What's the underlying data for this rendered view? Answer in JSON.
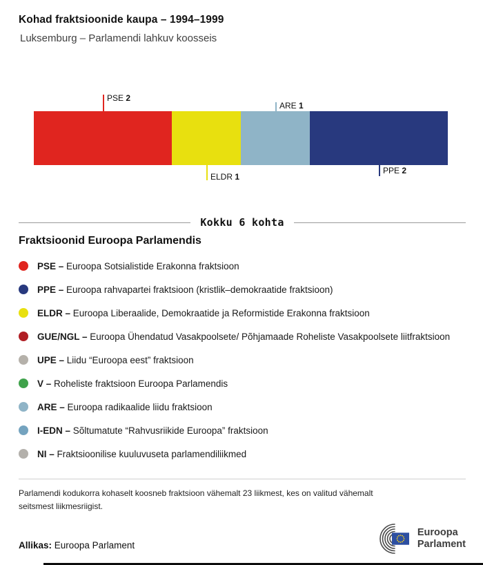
{
  "header": {
    "title": "Kohad fraktsioonide kaupa – 1994–1999",
    "subtitle": "Luksemburg – Parlamendi lahkuv koosseis"
  },
  "chart_data": {
    "type": "bar",
    "orientation": "horizontal-stacked",
    "title": "Kohad fraktsioonide kaupa – 1994–1999",
    "total_label": "Kokku 6 kohta",
    "total_seats": 6,
    "segments": [
      {
        "label": "PSE",
        "value": 2,
        "color": "#e0251f",
        "callout": "top"
      },
      {
        "label": "ELDR",
        "value": 1,
        "color": "#e8e00f",
        "callout": "bottom"
      },
      {
        "label": "ARE",
        "value": 1,
        "color": "#8fb4c7",
        "callout": "top"
      },
      {
        "label": "PPE",
        "value": 2,
        "color": "#28397e",
        "callout": "bottom"
      }
    ]
  },
  "legend": {
    "heading": "Fraktsioonid Euroopa Parlamendis",
    "items": [
      {
        "abbr": "PSE –",
        "desc": "Euroopa Sotsialistide Erakonna fraktsioon",
        "color": "#e0251f"
      },
      {
        "abbr": "PPE –",
        "desc": "Euroopa rahvapartei fraktsioon (kristlik–demokraatide fraktsioon)",
        "color": "#28397e"
      },
      {
        "abbr": "ELDR –",
        "desc": "Euroopa Liberaalide, Demokraatide ja Reformistide Erakonna fraktsioon",
        "color": "#e8e00f"
      },
      {
        "abbr": "GUE/NGL –",
        "desc": "Euroopa Ühendatud Vasakpoolsete/ Põhjamaade Roheliste Vasakpoolsete liitfraktsioon",
        "color": "#b01e24"
      },
      {
        "abbr": "UPE –",
        "desc": "Liidu “Euroopa eest” fraktsioon",
        "color": "#b5b1aa"
      },
      {
        "abbr": "V –",
        "desc": "Roheliste fraktsioon Euroopa Parlamendis",
        "color": "#3fa24b"
      },
      {
        "abbr": "ARE –",
        "desc": "Euroopa radikaalide liidu fraktsioon",
        "color": "#8fb4c7"
      },
      {
        "abbr": "I-EDN –",
        "desc": "Sõltumatute “Rahvusriikide Euroopa” fraktsioon",
        "color": "#74a3bf"
      },
      {
        "abbr": "NI –",
        "desc": "Fraktsioonilise kuuluvuseta parlamendiliikmed",
        "color": "#b3b0ab"
      }
    ]
  },
  "footnote": "Parlamendi kodukorra kohaselt koosneb fraktsioon vähemalt 23 liikmest, kes on valitud vähemalt seitsmest liikmesriigist.",
  "source": {
    "label": "Allikas:",
    "text": "Euroopa Parlament"
  },
  "logo": {
    "line1": "Euroopa",
    "line2": "Parlament"
  }
}
